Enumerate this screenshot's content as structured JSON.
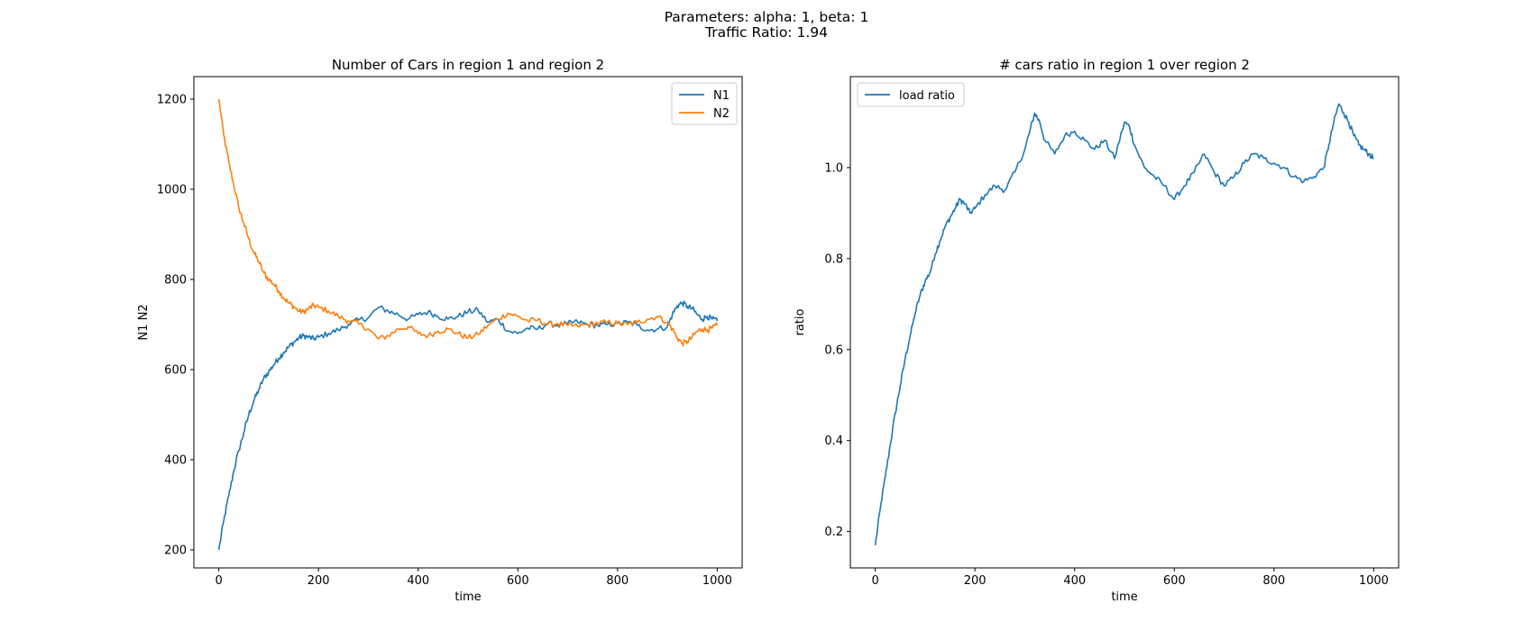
{
  "figure": {
    "suptitle_line1": "Parameters: alpha: 1, beta: 1",
    "suptitle_line2": "Traffic Ratio:  1.94"
  },
  "colors": {
    "n1": "#1f77b4",
    "n2": "#ff7f0e",
    "ratio": "#1f77b4"
  },
  "chart_data": [
    {
      "type": "line",
      "title": "Number of Cars in region 1 and region 2",
      "xlabel": "time",
      "ylabel": "N1 N2",
      "xlim": [
        -50,
        1050
      ],
      "ylim": [
        160,
        1250
      ],
      "xticks": [
        0,
        200,
        400,
        600,
        800,
        1000
      ],
      "xtick_labels": [
        "0",
        "200",
        "400",
        "600",
        "800",
        "1000"
      ],
      "yticks": [
        200,
        400,
        600,
        800,
        1000,
        1200
      ],
      "ytick_labels": [
        "200",
        "400",
        "600",
        "800",
        "1000",
        "1200"
      ],
      "legend_position": "top-right",
      "grid": false,
      "series": [
        {
          "name": "N1",
          "color": "#1f77b4",
          "x": [
            0,
            10,
            20,
            30,
            40,
            50,
            60,
            70,
            80,
            90,
            100,
            110,
            120,
            130,
            140,
            150,
            160,
            170,
            180,
            190,
            200,
            220,
            240,
            260,
            280,
            300,
            320,
            340,
            360,
            380,
            400,
            420,
            440,
            460,
            480,
            500,
            520,
            540,
            560,
            580,
            600,
            620,
            640,
            660,
            680,
            700,
            720,
            740,
            760,
            780,
            800,
            820,
            840,
            860,
            880,
            900,
            910,
            920,
            930,
            940,
            950,
            960,
            970,
            980,
            990,
            1000
          ],
          "y": [
            200,
            265,
            320,
            375,
            420,
            460,
            500,
            530,
            555,
            580,
            595,
            610,
            625,
            638,
            650,
            660,
            670,
            675,
            672,
            668,
            672,
            680,
            688,
            700,
            710,
            715,
            738,
            730,
            722,
            712,
            722,
            728,
            718,
            712,
            718,
            728,
            732,
            705,
            712,
            686,
            680,
            692,
            690,
            702,
            698,
            702,
            706,
            700,
            698,
            700,
            702,
            705,
            698,
            688,
            690,
            695,
            722,
            742,
            748,
            740,
            735,
            722,
            712,
            718,
            712,
            708
          ]
        },
        {
          "name": "N2",
          "color": "#ff7f0e",
          "x": [
            0,
            10,
            20,
            30,
            40,
            50,
            60,
            70,
            80,
            90,
            100,
            110,
            120,
            130,
            140,
            150,
            160,
            170,
            180,
            190,
            200,
            220,
            240,
            260,
            280,
            300,
            320,
            340,
            360,
            380,
            400,
            420,
            440,
            460,
            480,
            500,
            520,
            540,
            560,
            580,
            600,
            620,
            640,
            660,
            680,
            700,
            720,
            740,
            760,
            780,
            800,
            820,
            840,
            860,
            880,
            900,
            910,
            920,
            930,
            940,
            950,
            960,
            970,
            980,
            990,
            1000
          ],
          "y": [
            1200,
            1120,
            1060,
            1010,
            960,
            925,
            890,
            860,
            840,
            815,
            800,
            790,
            775,
            760,
            748,
            740,
            730,
            728,
            735,
            742,
            738,
            730,
            718,
            708,
            702,
            690,
            668,
            675,
            690,
            695,
            680,
            675,
            685,
            690,
            680,
            670,
            678,
            698,
            712,
            725,
            718,
            708,
            710,
            700,
            702,
            698,
            696,
            700,
            703,
            705,
            702,
            700,
            705,
            712,
            718,
            705,
            690,
            670,
            658,
            662,
            672,
            685,
            690,
            688,
            692,
            698
          ]
        }
      ]
    },
    {
      "type": "line",
      "title": "# cars ratio in region 1 over region 2",
      "xlabel": "time",
      "ylabel": "ratio",
      "xlim": [
        -50,
        1050
      ],
      "ylim": [
        0.12,
        1.2
      ],
      "xticks": [
        0,
        200,
        400,
        600,
        800,
        1000
      ],
      "xtick_labels": [
        "0",
        "200",
        "400",
        "600",
        "800",
        "1000"
      ],
      "yticks": [
        0.2,
        0.4,
        0.6,
        0.8,
        1.0
      ],
      "ytick_labels": [
        "0.2",
        "0.4",
        "0.6",
        "0.8",
        "1.0"
      ],
      "legend_position": "top-left",
      "grid": false,
      "series": [
        {
          "name": "load ratio",
          "color": "#1f77b4",
          "x": [
            0,
            10,
            20,
            30,
            40,
            50,
            60,
            70,
            80,
            90,
            100,
            110,
            120,
            130,
            140,
            150,
            160,
            170,
            180,
            190,
            200,
            220,
            240,
            260,
            280,
            300,
            310,
            320,
            330,
            340,
            360,
            380,
            400,
            420,
            440,
            460,
            480,
            500,
            510,
            520,
            540,
            560,
            580,
            600,
            620,
            640,
            660,
            680,
            700,
            720,
            740,
            760,
            780,
            800,
            820,
            840,
            860,
            880,
            900,
            910,
            920,
            930,
            940,
            950,
            960,
            970,
            980,
            990,
            1000
          ],
          "y": [
            0.17,
            0.25,
            0.32,
            0.39,
            0.46,
            0.52,
            0.58,
            0.63,
            0.68,
            0.72,
            0.75,
            0.77,
            0.81,
            0.84,
            0.87,
            0.89,
            0.91,
            0.93,
            0.92,
            0.9,
            0.91,
            0.94,
            0.96,
            0.95,
            0.99,
            1.04,
            1.08,
            1.12,
            1.1,
            1.06,
            1.03,
            1.07,
            1.08,
            1.06,
            1.04,
            1.06,
            1.02,
            1.1,
            1.09,
            1.05,
            1.0,
            0.98,
            0.96,
            0.93,
            0.96,
            0.99,
            1.03,
            0.99,
            0.96,
            0.98,
            1.01,
            1.03,
            1.02,
            1.01,
            1.0,
            0.98,
            0.97,
            0.98,
            1.0,
            1.05,
            1.1,
            1.14,
            1.12,
            1.1,
            1.07,
            1.05,
            1.04,
            1.03,
            1.02
          ]
        }
      ]
    }
  ]
}
